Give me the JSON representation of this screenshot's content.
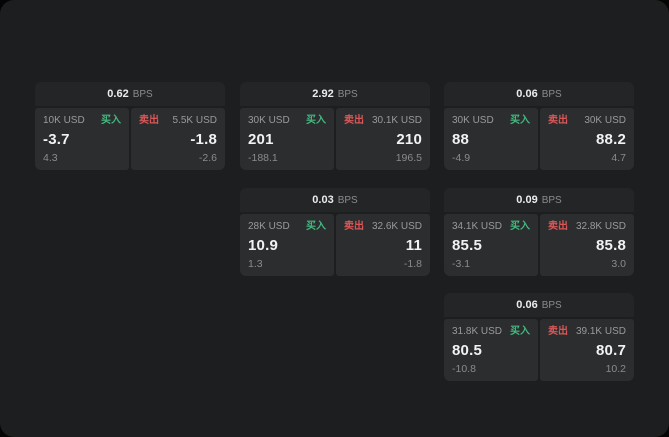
{
  "colors": {
    "buy_green": "#43b97f",
    "sell_red": "#d95757",
    "panel_background": "#2c2d2f",
    "window_background": "#1d1e1f"
  },
  "cards": [
    {
      "bps_value": "0.62",
      "bps_label": "BPS",
      "buy": {
        "size": "10K USD",
        "side_label": "买入",
        "price": "-3.7",
        "delta": "4.3"
      },
      "sell": {
        "size": "5.5K USD",
        "side_label": "卖出",
        "price": "-1.8",
        "delta": "-2.6"
      }
    },
    {
      "bps_value": "2.92",
      "bps_label": "BPS",
      "buy": {
        "size": "30K USD",
        "side_label": "买入",
        "price": "201",
        "delta": "-188.1"
      },
      "sell": {
        "size": "30.1K USD",
        "side_label": "卖出",
        "price": "210",
        "delta": "196.5"
      }
    },
    {
      "bps_value": "0.06",
      "bps_label": "BPS",
      "buy": {
        "size": "30K USD",
        "side_label": "买入",
        "price": "88",
        "delta": "-4.9"
      },
      "sell": {
        "size": "30K USD",
        "side_label": "卖出",
        "price": "88.2",
        "delta": "4.7"
      }
    },
    {
      "bps_value": "0.03",
      "bps_label": "BPS",
      "buy": {
        "size": "28K USD",
        "side_label": "买入",
        "price": "10.9",
        "delta": "1.3"
      },
      "sell": {
        "size": "32.6K USD",
        "side_label": "卖出",
        "price": "11",
        "delta": "-1.8"
      }
    },
    {
      "bps_value": "0.09",
      "bps_label": "BPS",
      "buy": {
        "size": "34.1K USD",
        "side_label": "买入",
        "price": "85.5",
        "delta": "-3.1"
      },
      "sell": {
        "size": "32.8K USD",
        "side_label": "卖出",
        "price": "85.8",
        "delta": "3.0"
      }
    },
    {
      "bps_value": "0.06",
      "bps_label": "BPS",
      "buy": {
        "size": "31.8K USD",
        "side_label": "买入",
        "price": "80.5",
        "delta": "-10.8"
      },
      "sell": {
        "size": "39.1K USD",
        "side_label": "卖出",
        "price": "80.7",
        "delta": "10.2"
      }
    }
  ]
}
